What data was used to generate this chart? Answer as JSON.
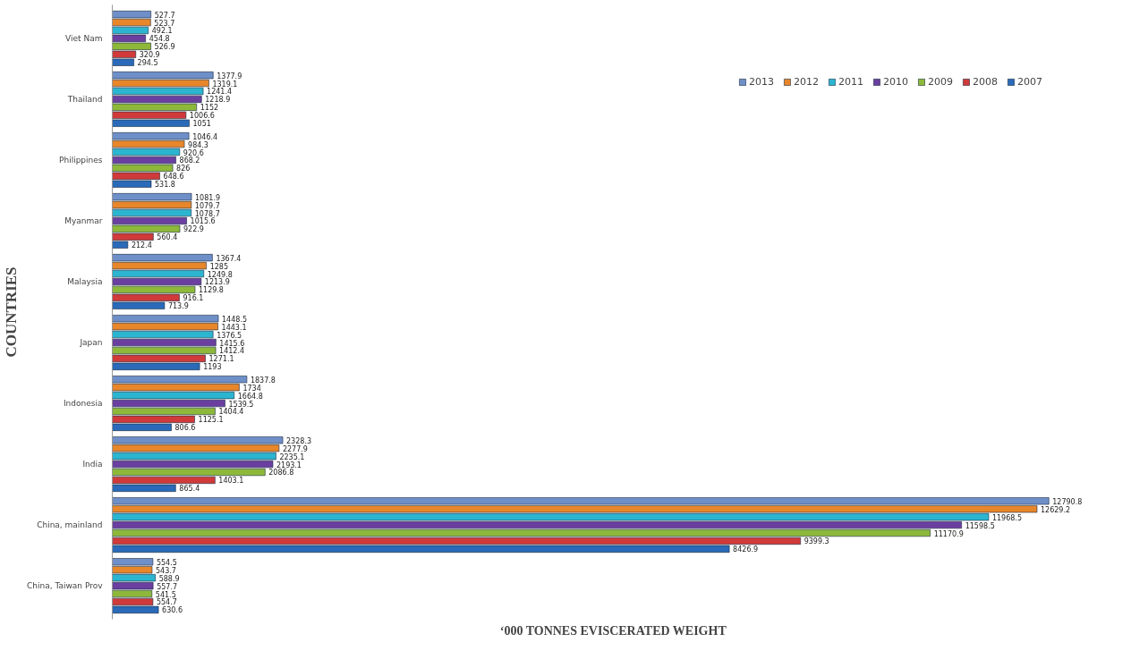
{
  "chart_data": {
    "type": "bar",
    "orientation": "horizontal",
    "xlabel": "‘000 TONNES EVISCERATED WEIGHT",
    "ylabel": "COUNTRIES",
    "categories": [
      "Viet Nam",
      "Thailand",
      "Philippines",
      "Myanmar",
      "Malaysia",
      "Japan",
      "Indonesia",
      "India",
      "China, mainland",
      "China, Taiwan Prov"
    ],
    "series": [
      {
        "name": "2013",
        "color": "#6f8fc8",
        "values": [
          527.7,
          1377.9,
          1046.4,
          1081.9,
          1367.4,
          1448.5,
          1837.8,
          2328.3,
          12790.8,
          554.5
        ]
      },
      {
        "name": "2012",
        "color": "#e8862a",
        "values": [
          523.7,
          1319.1,
          984.3,
          1079.7,
          1285,
          1443.1,
          1734,
          2277.9,
          12629.2,
          543.7
        ]
      },
      {
        "name": "2011",
        "color": "#2bb5d0",
        "values": [
          492.1,
          1241.4,
          920.6,
          1078.7,
          1249.8,
          1376.5,
          1664.8,
          2235.1,
          11968.5,
          588.9
        ]
      },
      {
        "name": "2010",
        "color": "#6a3fa0",
        "values": [
          454.8,
          1218.9,
          868.2,
          1015.6,
          1213.9,
          1415.6,
          1539.5,
          2193.1,
          11598.5,
          557.7
        ]
      },
      {
        "name": "2009",
        "color": "#8db83a",
        "values": [
          526.9,
          1152,
          826,
          922.9,
          1129.8,
          1412.4,
          1404.4,
          2086.8,
          11170.9,
          541.5
        ]
      },
      {
        "name": "2008",
        "color": "#d03a3a",
        "values": [
          320.9,
          1006.6,
          648.6,
          560.4,
          916.1,
          1271.1,
          1125.1,
          1403.1,
          9399.3,
          554.7
        ]
      },
      {
        "name": "2007",
        "color": "#2a6ab8",
        "values": [
          294.5,
          1051,
          531.8,
          212.4,
          713.9,
          1193,
          806.6,
          865.4,
          8426.9,
          630.6
        ]
      }
    ],
    "data_labels": true,
    "legend": "top right",
    "grid": false,
    "tick_labels": "y"
  }
}
